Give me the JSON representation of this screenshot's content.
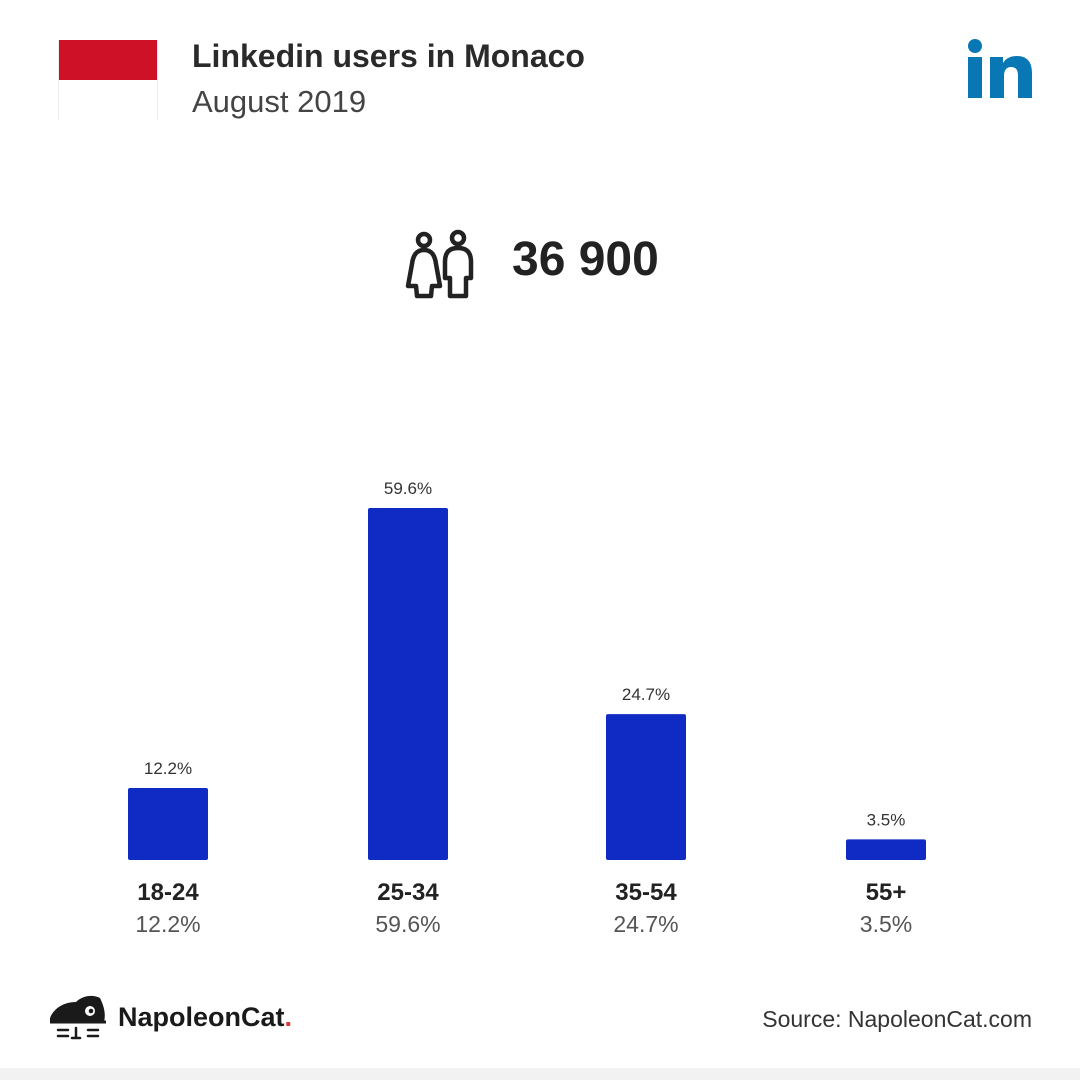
{
  "header": {
    "title": "Linkedin users in Monaco",
    "subtitle": "August 2019"
  },
  "flag": {
    "top_color": "#ce1126",
    "bottom_color": "#ffffff"
  },
  "brand_logo": {
    "icon": "linkedin-logo-icon",
    "color": "#0a77b5"
  },
  "total": {
    "icon": "people-icon",
    "value": "36 900"
  },
  "chart_data": {
    "type": "bar",
    "categories": [
      "18-24",
      "25-34",
      "35-54",
      "55+"
    ],
    "values": [
      12.2,
      59.6,
      24.7,
      3.5
    ],
    "value_labels": [
      "12.2%",
      "59.6%",
      "24.7%",
      "3.5%"
    ],
    "title": "",
    "xlabel": "",
    "ylabel": "",
    "ylim": [
      0,
      59.6
    ],
    "bar_color": "#0f2bc4",
    "grid": false,
    "legend": "none"
  },
  "footer": {
    "brand_name": "NapoleonCat",
    "brand_dot": ".",
    "source": "Source: NapoleonCat.com",
    "brand_icon": "napoleoncat-logo-icon"
  }
}
